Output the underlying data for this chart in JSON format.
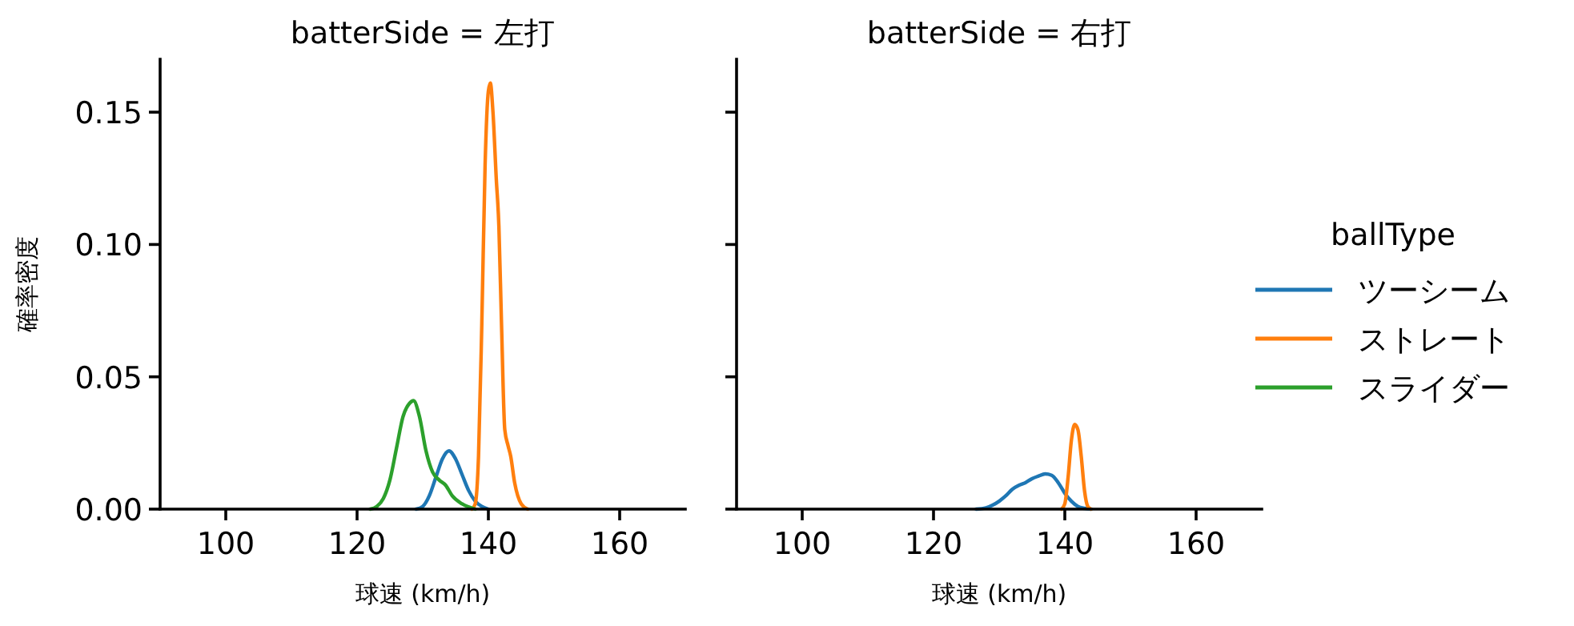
{
  "chart_data": [
    {
      "type": "line",
      "title": "batterSide = 左打",
      "xlabel": "球速 (km/h)",
      "ylabel": "確率密度",
      "xlim": [
        90,
        170
      ],
      "xticks": [
        100,
        120,
        140,
        160
      ],
      "ylim": [
        0,
        0.17
      ],
      "yticks": [
        {
          "value": 0,
          "label": "0.00"
        },
        {
          "value": 0.05,
          "label": "0.05"
        },
        {
          "value": 0.1,
          "label": "0.10"
        },
        {
          "value": 0.15,
          "label": "0.15"
        }
      ],
      "legend": "right",
      "legend_title": "ballType",
      "series": [
        {
          "name": "ツーシーム",
          "color": "#1f77b4",
          "x": [
            129,
            130,
            131,
            132,
            133,
            134,
            135,
            136,
            137,
            138,
            139,
            140
          ],
          "values": [
            0,
            0.001,
            0.005,
            0.012,
            0.019,
            0.022,
            0.019,
            0.013,
            0.007,
            0.003,
            0.001,
            0
          ]
        },
        {
          "name": "ストレート",
          "color": "#ff7f0e",
          "x": [
            137.5,
            138,
            138.5,
            139,
            139.5,
            140,
            140.3,
            140.7,
            141.2,
            141.6,
            142,
            142.5,
            143,
            143.4,
            144,
            145,
            146
          ],
          "values": [
            0,
            0.002,
            0.02,
            0.07,
            0.13,
            0.158,
            0.161,
            0.15,
            0.125,
            0.107,
            0.07,
            0.03,
            0.024,
            0.02,
            0.01,
            0.002,
            0
          ]
        },
        {
          "name": "スライダー",
          "color": "#2ca02c",
          "x": [
            122,
            123,
            124,
            125,
            126,
            127,
            128,
            128.6,
            129.5,
            130.5,
            131.5,
            132.5,
            133.5,
            134.5,
            136,
            138
          ],
          "values": [
            0,
            0.001,
            0.004,
            0.011,
            0.023,
            0.035,
            0.04,
            0.041,
            0.035,
            0.022,
            0.014,
            0.011,
            0.009,
            0.005,
            0.002,
            0
          ]
        }
      ]
    },
    {
      "type": "line",
      "title": "batterSide = 右打",
      "xlabel": "球速 (km/h)",
      "xlim": [
        90,
        170
      ],
      "xticks": [
        100,
        120,
        140,
        160
      ],
      "ylim": [
        0,
        0.17
      ],
      "yticks": [
        {
          "value": 0,
          "label": null
        },
        {
          "value": 0.05,
          "label": null
        },
        {
          "value": 0.1,
          "label": null
        },
        {
          "value": 0.15,
          "label": null
        }
      ],
      "tick_labels": "x",
      "series": [
        {
          "color": "#1f77b4",
          "x": [
            126.5,
            128,
            129,
            130,
            131,
            132,
            133,
            134,
            135,
            136,
            137,
            138,
            139,
            140,
            141,
            142,
            143,
            144
          ],
          "values": [
            0,
            0.0005,
            0.0015,
            0.003,
            0.005,
            0.0075,
            0.009,
            0.01,
            0.0115,
            0.0125,
            0.0133,
            0.0128,
            0.01,
            0.006,
            0.003,
            0.001,
            0.0003,
            0
          ]
        },
        {
          "color": "#ff7f0e",
          "x": [
            139.5,
            140,
            140.5,
            141,
            141.5,
            142,
            142.5,
            143,
            143.5,
            144
          ],
          "values": [
            0,
            0.002,
            0.012,
            0.026,
            0.032,
            0.03,
            0.02,
            0.007,
            0.001,
            0
          ]
        }
      ]
    }
  ]
}
